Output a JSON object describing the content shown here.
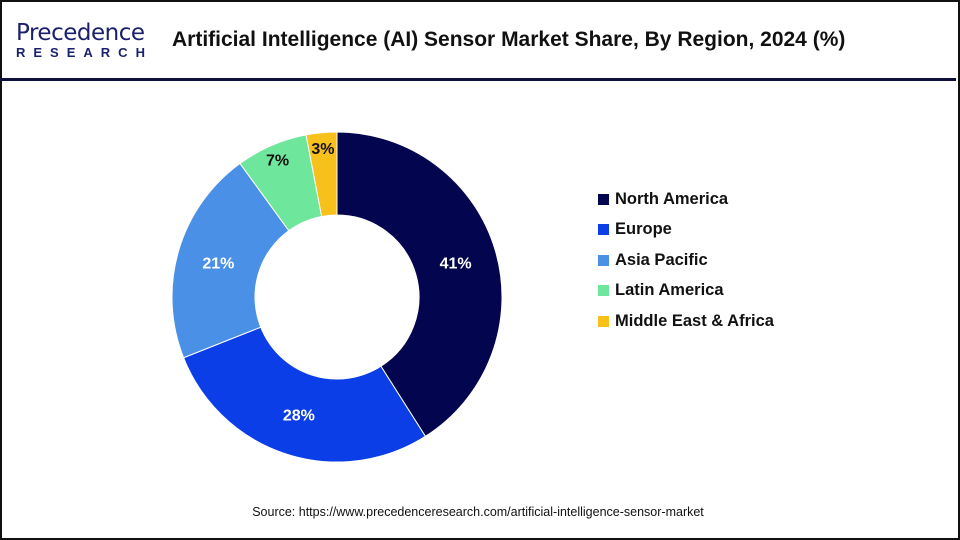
{
  "header": {
    "logo_top": "Precedence",
    "logo_bottom": "RESEARCH",
    "title": "Artificial Intelligence (AI) Sensor Market Share, By Region, 2024 (%)"
  },
  "chart_data": {
    "type": "pie",
    "donut": true,
    "title": "Artificial Intelligence (AI) Sensor Market Share, By Region, 2024 (%)",
    "categories": [
      "North America",
      "Europe",
      "Asia Pacific",
      "Latin America",
      "Middle East & Africa"
    ],
    "values": [
      41,
      28,
      21,
      7,
      3
    ],
    "labels": [
      "41%",
      "28%",
      "21%",
      "7%",
      "3%"
    ],
    "colors": [
      "#03054f",
      "#0b3ee6",
      "#4a90e6",
      "#6ee69c",
      "#f8c01a"
    ],
    "label_colors": [
      "#ffffff",
      "#ffffff",
      "#ffffff",
      "#111111",
      "#111111"
    ],
    "legend_placement": "right"
  },
  "source": "Source: https://www.precedenceresearch.com/artificial-intelligence-sensor-market"
}
